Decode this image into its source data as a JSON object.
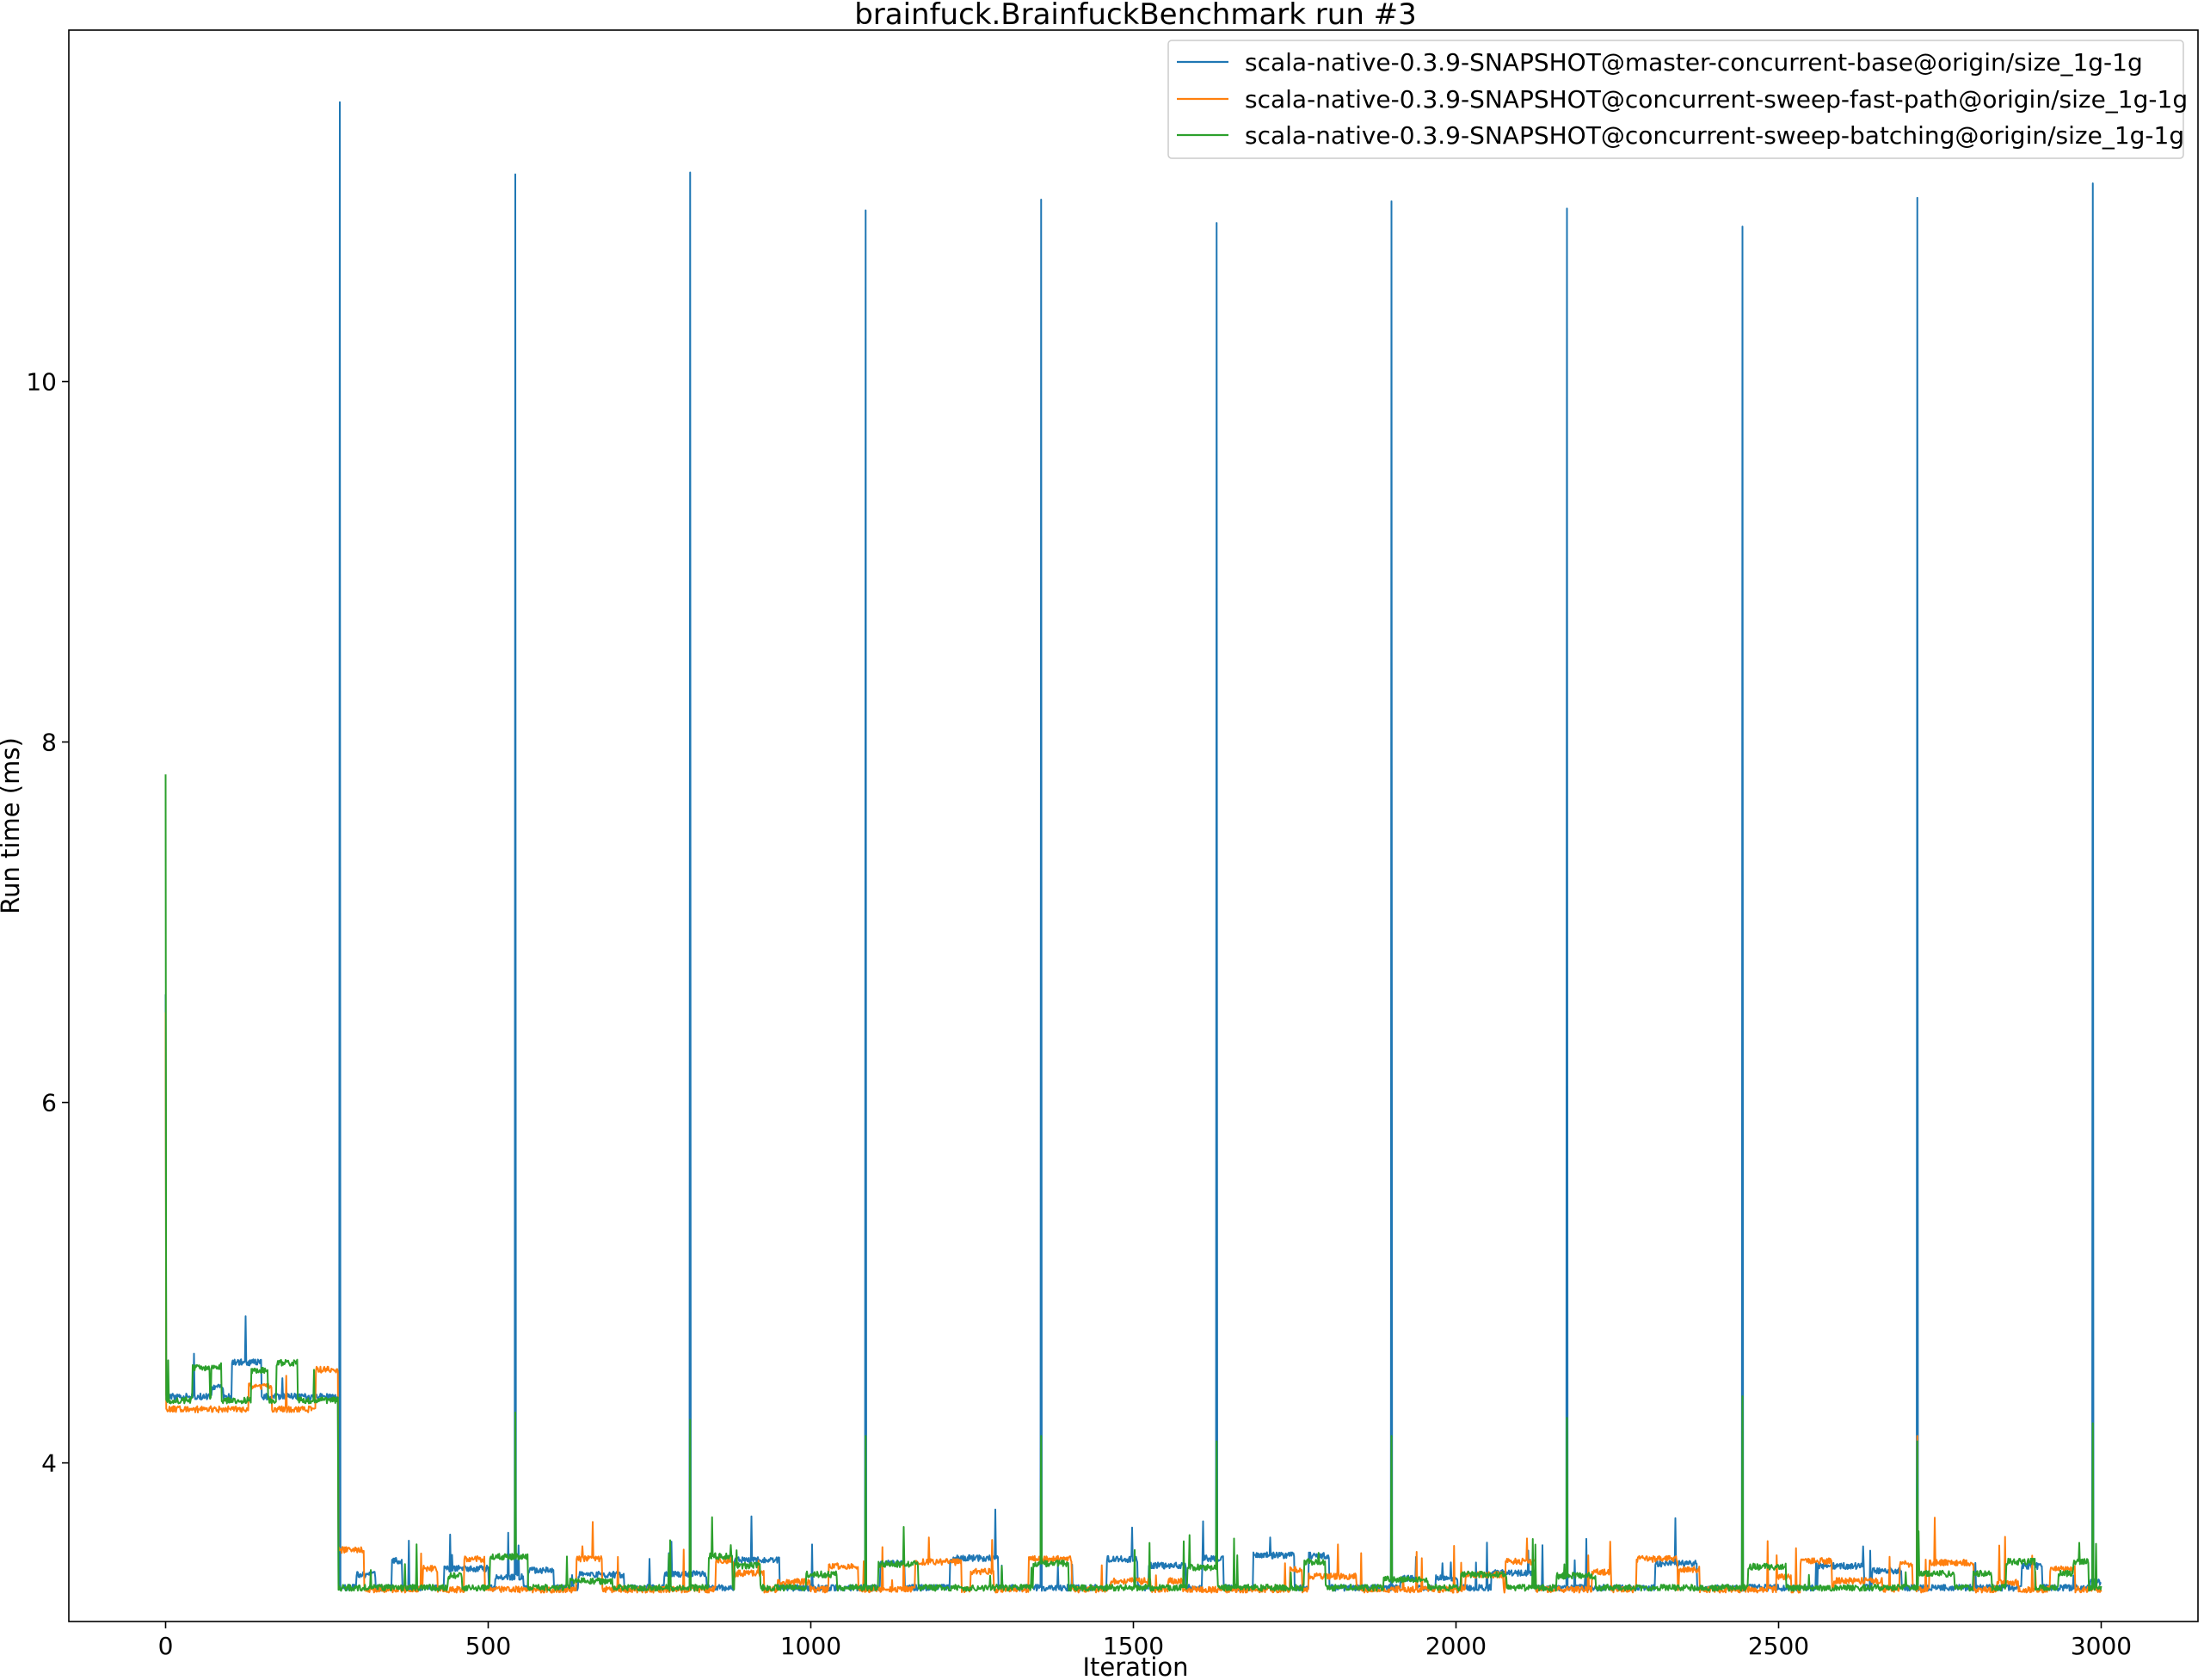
{
  "chart_data": {
    "type": "line",
    "title": "brainfuck.BrainfuckBenchmark run #3",
    "xlabel": "Iteration",
    "ylabel": "Run time (ms)",
    "xlim": [
      -150,
      3150
    ],
    "ylim": [
      3.12,
      11.95
    ],
    "xticks": [
      0,
      500,
      1000,
      1500,
      2000,
      2500,
      3000
    ],
    "yticks": [
      4,
      6,
      8,
      10
    ],
    "grid": false,
    "legend_position": "top-right",
    "series": [
      {
        "name": "scala-native-0.3.9-SNAPSHOT@master-concurrent-base@origin/size_1g-1g",
        "color": "#1f77b4",
        "start": 6.6,
        "warm_base": 4.35,
        "steady_base": 3.29,
        "spikes": [
          {
            "x": 270,
            "y": 11.55
          },
          {
            "x": 542,
            "y": 11.15
          },
          {
            "x": 813,
            "y": 11.16
          },
          {
            "x": 1085,
            "y": 10.95
          },
          {
            "x": 1357,
            "y": 11.01
          },
          {
            "x": 1629,
            "y": 10.88
          },
          {
            "x": 1900,
            "y": 11.0
          },
          {
            "x": 2172,
            "y": 10.96
          },
          {
            "x": 2444,
            "y": 10.86
          },
          {
            "x": 2715,
            "y": 11.02
          },
          {
            "x": 2987,
            "y": 11.1
          }
        ]
      },
      {
        "name": "scala-native-0.3.9-SNAPSHOT@concurrent-sweep-fast-path@origin/size_1g-1g",
        "color": "#ff7f0e",
        "start": 6.5,
        "warm_base": 4.28,
        "steady_base": 3.28,
        "spikes": [
          {
            "x": 2715,
            "y": 4.15
          },
          {
            "x": 1085,
            "y": 3.55
          }
        ]
      },
      {
        "name": "scala-native-0.3.9-SNAPSHOT@concurrent-sweep-batching@origin/size_1g-1g",
        "color": "#2ca02c",
        "start": 7.82,
        "warm_base": 4.33,
        "steady_base": 3.29,
        "spikes": [
          {
            "x": 542,
            "y": 4.28
          },
          {
            "x": 813,
            "y": 4.24
          },
          {
            "x": 1085,
            "y": 4.15
          },
          {
            "x": 1357,
            "y": 4.15
          },
          {
            "x": 1629,
            "y": 4.12
          },
          {
            "x": 1900,
            "y": 4.15
          },
          {
            "x": 2172,
            "y": 4.25
          },
          {
            "x": 2444,
            "y": 4.37
          },
          {
            "x": 2715,
            "y": 4.12
          },
          {
            "x": 2987,
            "y": 4.22
          }
        ]
      }
    ],
    "n_points": 3001
  }
}
